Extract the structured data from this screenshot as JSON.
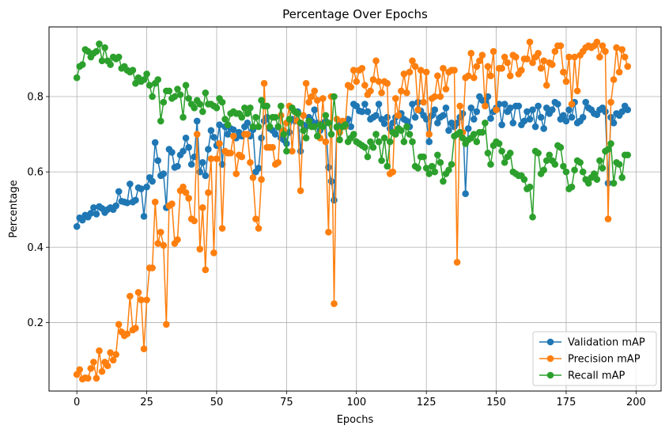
{
  "chart_data": {
    "type": "line",
    "title": "Percentage Over Epochs",
    "xlabel": "Epochs",
    "ylabel": "Percentage",
    "xlim": [
      -9.95,
      208.95
    ],
    "ylim": [
      0.018,
      0.985
    ],
    "xticks": [
      0,
      25,
      50,
      75,
      100,
      125,
      150,
      175,
      200
    ],
    "yticks": [
      0.2,
      0.4,
      0.6,
      0.8
    ],
    "grid": true,
    "legend_position": "lower-right",
    "series": [
      {
        "name": "Validation mAP",
        "color": "#1f77b4",
        "values": [
          0.455,
          0.478,
          0.472,
          0.485,
          0.48,
          0.49,
          0.505,
          0.488,
          0.508,
          0.503,
          0.492,
          0.5,
          0.505,
          0.5,
          0.51,
          0.548,
          0.522,
          0.52,
          0.518,
          0.568,
          0.52,
          0.525,
          0.558,
          0.555,
          0.482,
          0.56,
          0.585,
          0.575,
          0.678,
          0.63,
          0.59,
          0.595,
          0.505,
          0.66,
          0.652,
          0.612,
          0.615,
          0.645,
          0.655,
          0.69,
          0.665,
          0.62,
          0.64,
          0.735,
          0.6,
          0.625,
          0.59,
          0.66,
          0.71,
          0.692,
          0.67,
          0.725,
          0.62,
          0.72,
          0.7,
          0.715,
          0.712,
          0.69,
          0.705,
          0.695,
          0.72,
          0.73,
          0.695,
          0.712,
          0.6,
          0.61,
          0.69,
          0.735,
          0.745,
          0.715,
          0.71,
          0.7,
          0.72,
          0.69,
          0.685,
          0.675,
          0.705,
          0.74,
          0.735,
          0.76,
          0.655,
          0.725,
          0.72,
          0.745,
          0.735,
          0.765,
          0.73,
          0.71,
          0.73,
          0.735,
          0.612,
          0.575,
          0.525,
          0.718,
          0.73,
          0.72,
          0.73,
          0.74,
          0.72,
          0.78,
          0.775,
          0.762,
          0.76,
          0.78,
          0.76,
          0.74,
          0.745,
          0.75,
          0.78,
          0.74,
          0.728,
          0.745,
          0.715,
          0.73,
          0.745,
          0.715,
          0.755,
          0.74,
          0.735,
          0.72,
          0.78,
          0.745,
          0.785,
          0.762,
          0.75,
          0.74,
          0.68,
          0.75,
          0.765,
          0.73,
          0.745,
          0.75,
          0.77,
          0.71,
          0.73,
          0.72,
          0.73,
          0.745,
          0.755,
          0.542,
          0.715,
          0.77,
          0.74,
          0.76,
          0.8,
          0.79,
          0.785,
          0.8,
          0.742,
          0.76,
          0.77,
          0.78,
          0.725,
          0.78,
          0.76,
          0.77,
          0.73,
          0.775,
          0.775,
          0.725,
          0.735,
          0.76,
          0.74,
          0.765,
          0.72,
          0.775,
          0.745,
          0.715,
          0.77,
          0.755,
          0.765,
          0.785,
          0.78,
          0.74,
          0.75,
          0.735,
          0.765,
          0.745,
          0.785,
          0.73,
          0.735,
          0.745,
          0.785,
          0.77,
          0.765,
          0.755,
          0.752,
          0.765,
          0.77,
          0.76,
          0.57,
          0.745,
          0.73,
          0.755,
          0.75,
          0.76,
          0.775,
          0.765
        ]
      },
      {
        "name": "Precision mAP",
        "color": "#ff7f0e",
        "values": [
          0.062,
          0.075,
          0.05,
          0.053,
          0.052,
          0.078,
          0.095,
          0.052,
          0.125,
          0.07,
          0.095,
          0.085,
          0.12,
          0.1,
          0.115,
          0.195,
          0.175,
          0.165,
          0.17,
          0.27,
          0.18,
          0.185,
          0.28,
          0.26,
          0.13,
          0.26,
          0.345,
          0.345,
          0.52,
          0.41,
          0.44,
          0.405,
          0.195,
          0.51,
          0.515,
          0.41,
          0.42,
          0.55,
          0.56,
          0.545,
          0.53,
          0.475,
          0.47,
          0.7,
          0.395,
          0.505,
          0.34,
          0.545,
          0.635,
          0.385,
          0.635,
          0.675,
          0.45,
          0.655,
          0.65,
          0.65,
          0.695,
          0.595,
          0.645,
          0.64,
          0.7,
          0.7,
          0.625,
          0.585,
          0.475,
          0.45,
          0.58,
          0.835,
          0.665,
          0.665,
          0.665,
          0.62,
          0.625,
          0.75,
          0.71,
          0.73,
          0.775,
          0.655,
          0.76,
          0.735,
          0.55,
          0.75,
          0.835,
          0.785,
          0.8,
          0.815,
          0.79,
          0.69,
          0.795,
          0.68,
          0.44,
          0.8,
          0.25,
          0.74,
          0.705,
          0.735,
          0.72,
          0.83,
          0.825,
          0.87,
          0.84,
          0.87,
          0.875,
          0.83,
          0.805,
          0.815,
          0.845,
          0.895,
          0.84,
          0.81,
          0.84,
          0.835,
          0.595,
          0.6,
          0.795,
          0.75,
          0.815,
          0.86,
          0.81,
          0.865,
          0.895,
          0.88,
          0.765,
          0.87,
          0.785,
          0.865,
          0.7,
          0.795,
          0.8,
          0.855,
          0.8,
          0.875,
          0.82,
          0.865,
          0.87,
          0.87,
          0.36,
          0.775,
          0.705,
          0.85,
          0.855,
          0.915,
          0.85,
          0.88,
          0.895,
          0.91,
          0.775,
          0.88,
          0.855,
          0.92,
          0.765,
          0.875,
          0.875,
          0.905,
          0.89,
          0.855,
          0.91,
          0.905,
          0.86,
          0.87,
          0.9,
          0.9,
          0.945,
          0.89,
          0.905,
          0.915,
          0.875,
          0.895,
          0.83,
          0.89,
          0.885,
          0.92,
          0.935,
          0.935,
          0.865,
          0.84,
          0.905,
          0.78,
          0.905,
          0.815,
          0.91,
          0.92,
          0.93,
          0.935,
          0.93,
          0.935,
          0.945,
          0.905,
          0.935,
          0.92,
          0.475,
          0.785,
          0.845,
          0.93,
          0.865,
          0.925,
          0.905,
          0.88
        ]
      },
      {
        "name": "Recall mAP",
        "color": "#2ca02c",
        "values": [
          0.85,
          0.88,
          0.885,
          0.925,
          0.92,
          0.905,
          0.915,
          0.92,
          0.94,
          0.895,
          0.93,
          0.895,
          0.885,
          0.905,
          0.9,
          0.905,
          0.875,
          0.88,
          0.87,
          0.865,
          0.87,
          0.835,
          0.85,
          0.84,
          0.845,
          0.86,
          0.83,
          0.8,
          0.835,
          0.845,
          0.735,
          0.785,
          0.815,
          0.815,
          0.795,
          0.8,
          0.82,
          0.805,
          0.745,
          0.83,
          0.795,
          0.78,
          0.77,
          0.79,
          0.78,
          0.76,
          0.81,
          0.78,
          0.78,
          0.775,
          0.77,
          0.795,
          0.785,
          0.74,
          0.725,
          0.755,
          0.76,
          0.755,
          0.755,
          0.745,
          0.77,
          0.755,
          0.77,
          0.72,
          0.745,
          0.72,
          0.79,
          0.775,
          0.775,
          0.72,
          0.745,
          0.745,
          0.72,
          0.775,
          0.7,
          0.655,
          0.74,
          0.77,
          0.76,
          0.755,
          0.73,
          0.71,
          0.69,
          0.735,
          0.72,
          0.72,
          0.695,
          0.725,
          0.72,
          0.75,
          0.73,
          0.7,
          0.8,
          0.72,
          0.685,
          0.72,
          0.725,
          0.68,
          0.69,
          0.7,
          0.68,
          0.675,
          0.67,
          0.665,
          0.64,
          0.68,
          0.665,
          0.7,
          0.68,
          0.63,
          0.69,
          0.615,
          0.68,
          0.705,
          0.7,
          0.715,
          0.71,
          0.68,
          0.72,
          0.7,
          0.68,
          0.615,
          0.61,
          0.64,
          0.64,
          0.61,
          0.595,
          0.615,
          0.6,
          0.645,
          0.625,
          0.575,
          0.595,
          0.605,
          0.62,
          0.695,
          0.7,
          0.705,
          0.69,
          0.675,
          0.685,
          0.69,
          0.7,
          0.68,
          0.705,
          0.705,
          0.73,
          0.65,
          0.62,
          0.67,
          0.68,
          0.675,
          0.655,
          0.625,
          0.64,
          0.65,
          0.6,
          0.595,
          0.59,
          0.59,
          0.58,
          0.555,
          0.56,
          0.48,
          0.655,
          0.65,
          0.595,
          0.605,
          0.63,
          0.645,
          0.63,
          0.62,
          0.67,
          0.665,
          0.615,
          0.6,
          0.555,
          0.56,
          0.605,
          0.63,
          0.625,
          0.6,
          0.58,
          0.57,
          0.585,
          0.595,
          0.58,
          0.63,
          0.61,
          0.655,
          0.66,
          0.675,
          0.57,
          0.625,
          0.62,
          0.585,
          0.645,
          0.645
        ]
      }
    ]
  }
}
